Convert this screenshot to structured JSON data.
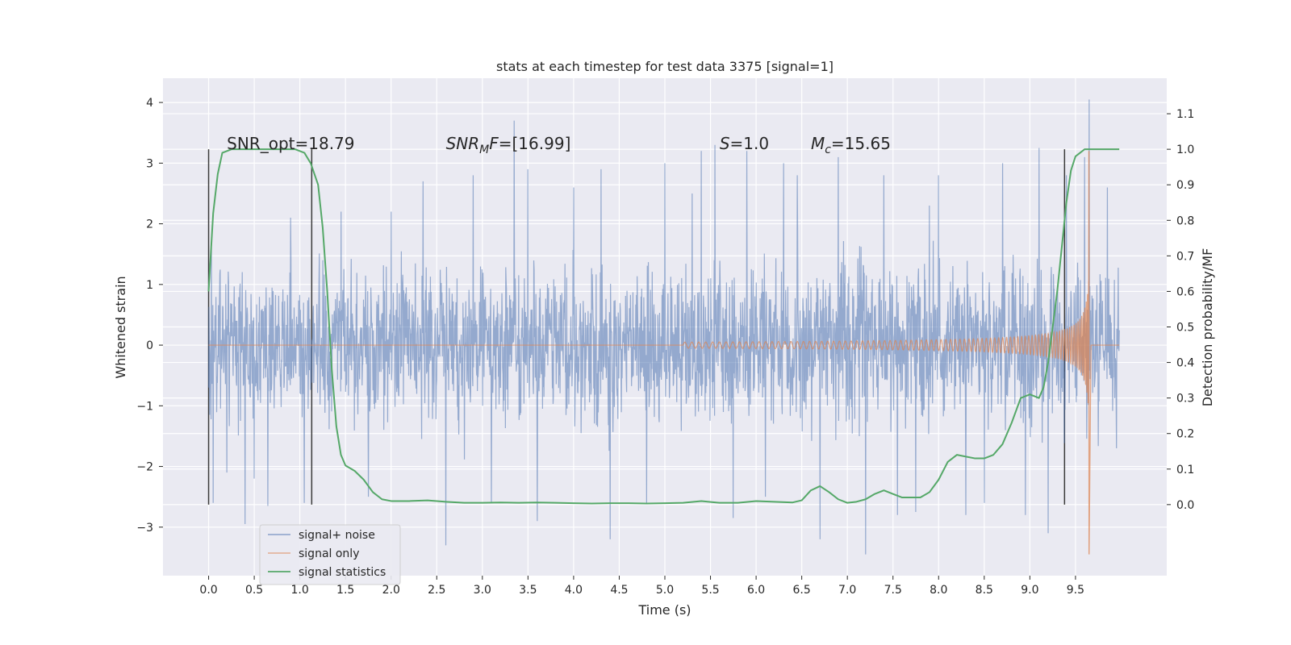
{
  "chart_data": {
    "type": "line",
    "title": "stats at each timestep for test data 3375 [signal=1]",
    "xlabel": "Time (s)",
    "ylabel": "Whitened strain",
    "y2label": "Detection probability/MF",
    "xlim": [
      -0.5,
      10.5
    ],
    "ylim": [
      -3.8,
      4.4
    ],
    "y2lim": [
      -0.2,
      1.2
    ],
    "xticks": [
      0.0,
      0.5,
      1.0,
      1.5,
      2.0,
      2.5,
      3.0,
      3.5,
      4.0,
      4.5,
      5.0,
      5.5,
      6.0,
      6.5,
      7.0,
      7.5,
      8.0,
      8.5,
      9.0,
      9.5
    ],
    "yticks": [
      -3,
      -2,
      -1,
      0,
      1,
      2,
      3,
      4
    ],
    "y2ticks": [
      0.0,
      0.1,
      0.2,
      0.3,
      0.4,
      0.5,
      0.6,
      0.7,
      0.8,
      0.9,
      1.0,
      1.1
    ],
    "grid": true,
    "legend_position": "lower-left",
    "annotations": [
      {
        "text": "SNR_opt=18.79",
        "x": 0.2
      },
      {
        "html": "SNR<tspan font-size='14' dy='4'>M</tspan><tspan dy='-4'>F</tspan>=[16.99]",
        "text": "SNRMF=[16.99]",
        "x": 2.6,
        "italic_prefix": true
      },
      {
        "text": "S=1.0",
        "x": 5.6
      },
      {
        "text": "Mc=15.65",
        "x": 6.6
      }
    ],
    "vertical_lines": [
      0.0,
      1.13,
      9.38
    ],
    "series": [
      {
        "name": "signal+ noise",
        "color": "#4c72b0",
        "kind": "noise",
        "t_range": [
          0.0,
          9.98
        ],
        "envelope": 1.5,
        "extremes": [
          [
            0.03,
            1.6
          ],
          [
            0.05,
            -2.6
          ],
          [
            0.2,
            -2.1
          ],
          [
            0.4,
            -2.95
          ],
          [
            0.5,
            -2.2
          ],
          [
            0.65,
            -2.65
          ],
          [
            0.9,
            2.1
          ],
          [
            1.05,
            -2.6
          ],
          [
            1.25,
            1.4
          ],
          [
            1.45,
            2.2
          ],
          [
            1.75,
            -2.5
          ],
          [
            2.0,
            2.2
          ],
          [
            2.35,
            2.7
          ],
          [
            2.6,
            -3.3
          ],
          [
            2.9,
            2.8
          ],
          [
            3.1,
            -2.6
          ],
          [
            3.35,
            3.7
          ],
          [
            3.5,
            2.9
          ],
          [
            3.6,
            -2.9
          ],
          [
            4.0,
            2.6
          ],
          [
            4.3,
            2.9
          ],
          [
            4.4,
            -3.2
          ],
          [
            4.8,
            -2.6
          ],
          [
            5.0,
            3.0
          ],
          [
            5.3,
            2.5
          ],
          [
            5.4,
            3.2
          ],
          [
            5.55,
            3.3
          ],
          [
            5.75,
            -2.85
          ],
          [
            5.9,
            3.2
          ],
          [
            6.1,
            -2.5
          ],
          [
            6.3,
            3.0
          ],
          [
            6.45,
            2.8
          ],
          [
            6.7,
            -3.2
          ],
          [
            6.9,
            3.1
          ],
          [
            7.2,
            -3.45
          ],
          [
            7.4,
            2.8
          ],
          [
            7.55,
            -2.8
          ],
          [
            7.75,
            -2.75
          ],
          [
            7.9,
            2.3
          ],
          [
            8.0,
            2.8
          ],
          [
            8.3,
            -2.8
          ],
          [
            8.5,
            -2.6
          ],
          [
            8.7,
            3.0
          ],
          [
            8.95,
            -2.8
          ],
          [
            9.1,
            3.25
          ],
          [
            9.2,
            -3.1
          ],
          [
            9.4,
            2.8
          ],
          [
            9.6,
            3.1
          ],
          [
            9.65,
            4.05
          ],
          [
            9.85,
            2.6
          ],
          [
            9.95,
            -1.7
          ]
        ]
      },
      {
        "name": "signal only",
        "color": "#dd8452",
        "kind": "chirp",
        "t_start": 5.2,
        "t_merge": 9.65,
        "t_end": 9.98,
        "peak_pos": 3.2,
        "peak_neg": -3.45
      },
      {
        "name": "signal statistics",
        "color": "#55a868",
        "kind": "line",
        "axis": "right",
        "x": [
          0.0,
          0.05,
          0.1,
          0.15,
          0.25,
          0.4,
          0.6,
          0.8,
          0.95,
          1.05,
          1.12,
          1.2,
          1.25,
          1.3,
          1.35,
          1.4,
          1.45,
          1.5,
          1.6,
          1.7,
          1.8,
          1.9,
          2.0,
          2.2,
          2.4,
          2.6,
          2.8,
          3.0,
          3.2,
          3.4,
          3.6,
          3.8,
          4.0,
          4.2,
          4.4,
          4.6,
          4.8,
          5.0,
          5.2,
          5.4,
          5.6,
          5.8,
          6.0,
          6.2,
          6.4,
          6.5,
          6.6,
          6.7,
          6.8,
          6.9,
          7.0,
          7.1,
          7.2,
          7.3,
          7.4,
          7.5,
          7.6,
          7.7,
          7.8,
          7.9,
          8.0,
          8.1,
          8.2,
          8.3,
          8.4,
          8.5,
          8.6,
          8.7,
          8.8,
          8.9,
          9.0,
          9.1,
          9.15,
          9.2,
          9.3,
          9.4,
          9.45,
          9.5,
          9.55,
          9.6,
          9.7,
          9.8,
          9.98
        ],
        "y": [
          0.6,
          0.82,
          0.93,
          0.99,
          1.0,
          1.0,
          1.0,
          1.0,
          1.0,
          0.99,
          0.96,
          0.9,
          0.78,
          0.6,
          0.38,
          0.22,
          0.14,
          0.11,
          0.095,
          0.07,
          0.035,
          0.015,
          0.01,
          0.01,
          0.012,
          0.008,
          0.005,
          0.005,
          0.006,
          0.005,
          0.006,
          0.005,
          0.004,
          0.003,
          0.004,
          0.004,
          0.003,
          0.004,
          0.005,
          0.01,
          0.005,
          0.005,
          0.01,
          0.008,
          0.006,
          0.012,
          0.04,
          0.052,
          0.035,
          0.015,
          0.005,
          0.008,
          0.015,
          0.03,
          0.04,
          0.03,
          0.02,
          0.02,
          0.02,
          0.035,
          0.07,
          0.12,
          0.14,
          0.135,
          0.13,
          0.13,
          0.14,
          0.17,
          0.23,
          0.3,
          0.31,
          0.3,
          0.33,
          0.4,
          0.6,
          0.85,
          0.94,
          0.98,
          0.99,
          1.0,
          1.0,
          1.0,
          1.0
        ]
      }
    ]
  }
}
